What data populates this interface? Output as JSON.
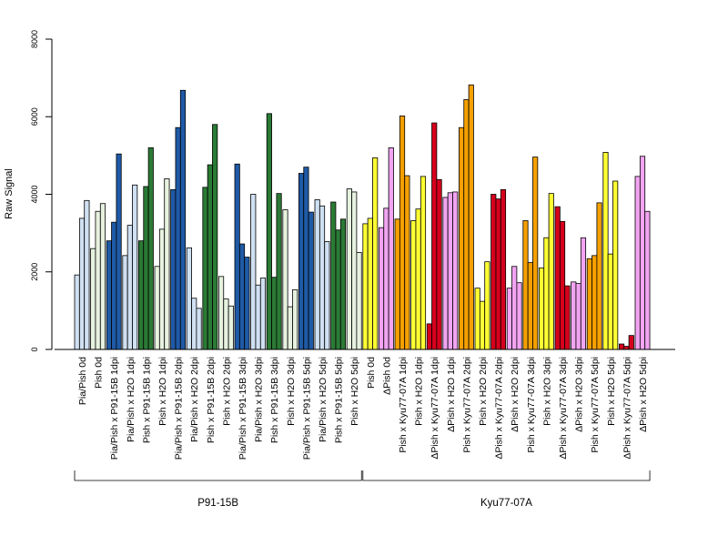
{
  "chart_data": {
    "type": "bar",
    "ylabel": "Raw Signal",
    "ylim": [
      0,
      8000
    ],
    "yticks": [
      0,
      2000,
      4000,
      6000,
      8000
    ],
    "grid": false,
    "colors": {
      "light_blue": "#cfe0f2",
      "light_green": "#e6f2df",
      "blue": "#1f5aa6",
      "green": "#2b7a35",
      "yellow": "#ffff33",
      "violet": "#f2a4f2",
      "orange": "#f5a000",
      "red": "#d6001c"
    },
    "groups": [
      {
        "label": "P91-15B",
        "categories": [
          {
            "label": "Pia/Pish 0d",
            "color": "light_blue",
            "values": [
              1920,
              3380,
              3840
            ]
          },
          {
            "label": "Pish 0d",
            "color": "light_green",
            "values": [
              2600,
              3560,
              3760
            ]
          },
          {
            "label": "Pia/Pish x P91-15B 1dpi",
            "color": "blue",
            "values": [
              2800,
              3280,
              5040
            ]
          },
          {
            "label": "Pia/Pish x H2O 1dpi",
            "color": "light_blue",
            "values": [
              2420,
              3200,
              4240
            ]
          },
          {
            "label": "Pish x P91-15B 1dpi",
            "color": "green",
            "values": [
              2800,
              4200,
              5200
            ]
          },
          {
            "label": "Pish x H2O 1dpi",
            "color": "light_green",
            "values": [
              2140,
              3100,
              4400
            ]
          },
          {
            "label": "Pia/Pish x P91-15B 2dpi",
            "color": "blue",
            "values": [
              4120,
              5720,
              6680
            ]
          },
          {
            "label": "Pia/Pish x H2O 2dpi",
            "color": "light_blue",
            "values": [
              2620,
              1320,
              1060
            ]
          },
          {
            "label": "Pish x P91-15B 2dpi",
            "color": "green",
            "values": [
              4180,
              4760,
              5800
            ]
          },
          {
            "label": "Pish x H2O 2dpi",
            "color": "light_green",
            "values": [
              1880,
              1300,
              1120
            ]
          },
          {
            "label": "Pia/Pish x P91-15B 3dpi",
            "color": "blue",
            "values": [
              4780,
              2720,
              2380
            ]
          },
          {
            "label": "Pia/Pish x H2O 3dpi",
            "color": "light_blue",
            "values": [
              4000,
              1660,
              1840
            ]
          },
          {
            "label": "Pish x P91-15B 3dpi",
            "color": "green",
            "values": [
              6080,
              1860,
              4020
            ]
          },
          {
            "label": "Pish x H2O 3dpi",
            "color": "light_green",
            "values": [
              3600,
              1100,
              1540
            ]
          },
          {
            "label": "Pia/Pish x P91-15B 5dpi",
            "color": "blue",
            "values": [
              4540,
              4700,
              3540
            ]
          },
          {
            "label": "Pia/Pish x H2O 5dpi",
            "color": "light_blue",
            "values": [
              3860,
              3700,
              2780
            ]
          },
          {
            "label": "Pish x P91-15B 5dpi",
            "color": "green",
            "values": [
              3800,
              3080,
              3360
            ]
          },
          {
            "label": "Pish x H2O 5dpi",
            "color": "light_green",
            "values": [
              4140,
              4060,
              2500
            ]
          }
        ]
      },
      {
        "label": "Kyu77-07A",
        "categories": [
          {
            "label": "Pish 0d",
            "color": "yellow",
            "values": [
              3240,
              3380,
              4940
            ]
          },
          {
            "label": "ΔPish 0d",
            "color": "violet",
            "values": [
              3140,
              3640,
              5200
            ]
          },
          {
            "label": "Pish x Kyu77-07A 1dpi",
            "color": "orange",
            "values": [
              3360,
              6020,
              4480
            ]
          },
          {
            "label": "Pish x H2O 1dpi",
            "color": "yellow",
            "values": [
              3320,
              3620,
              4460
            ]
          },
          {
            "label": "ΔPish x Kyu77-07A 1dpi",
            "color": "red",
            "values": [
              660,
              5840,
              4380
            ]
          },
          {
            "label": "ΔPish x H2O 1dpi",
            "color": "violet",
            "values": [
              3920,
              4040,
              4060
            ]
          },
          {
            "label": "Pish x Kyu77-07A 2dpi",
            "color": "orange",
            "values": [
              5720,
              6440,
              6820
            ]
          },
          {
            "label": "Pish x H2O 2dpi",
            "color": "yellow",
            "values": [
              1580,
              1240,
              2260
            ]
          },
          {
            "label": "ΔPish x Kyu77-07A 2dpi",
            "color": "red",
            "values": [
              4000,
              3880,
              4120
            ]
          },
          {
            "label": "ΔPish x H2O 2dpi",
            "color": "violet",
            "values": [
              1580,
              2140,
              1720
            ]
          },
          {
            "label": "Pish x Kyu77-07A 3dpi",
            "color": "orange",
            "values": [
              3320,
              2240,
              4960
            ]
          },
          {
            "label": "Pish x H2O 3dpi",
            "color": "yellow",
            "values": [
              2100,
              2880,
              4020
            ]
          },
          {
            "label": "ΔPish x Kyu77-07A 3dpi",
            "color": "red",
            "values": [
              3680,
              3300,
              1640
            ]
          },
          {
            "label": "ΔPish x H2O 3dpi",
            "color": "violet",
            "values": [
              1740,
              1700,
              2880
            ]
          },
          {
            "label": "Pish x Kyu77-07A 5dpi",
            "color": "orange",
            "values": [
              2340,
              2420,
              3780
            ]
          },
          {
            "label": "Pish x H2O 5dpi",
            "color": "yellow",
            "values": [
              5080,
              2460,
              4340
            ]
          },
          {
            "label": "ΔPish x Kyu77-07A 5dpi",
            "color": "red",
            "values": [
              140,
              80,
              360
            ]
          },
          {
            "label": "ΔPish x H2O 5dpi",
            "color": "violet",
            "values": [
              4460,
              4980,
              3560
            ]
          }
        ]
      }
    ]
  }
}
